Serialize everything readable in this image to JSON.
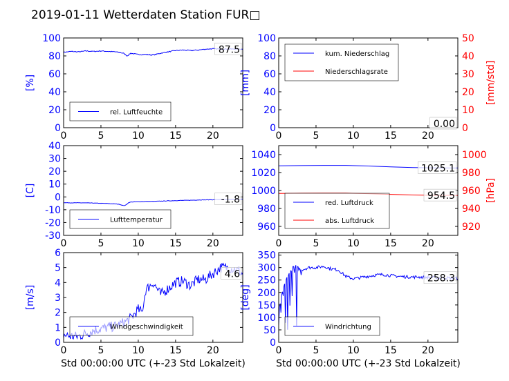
{
  "title": "2019-01-11 Wetterdaten Station FUR□",
  "colors": {
    "primary": "#0000ff",
    "secondary": "#ff0000",
    "axes": "#000000"
  },
  "chart_data": [
    {
      "id": "humidity",
      "type": "line",
      "xlim": [
        0,
        24
      ],
      "xticks": [
        0,
        5,
        10,
        15,
        20
      ],
      "ylim": [
        0,
        100
      ],
      "yticks": [
        0,
        20,
        40,
        60,
        80,
        100
      ],
      "ylabel": "[%]",
      "xlabel": "",
      "legend": "bottom-left",
      "grid": false,
      "annotation": "87.5",
      "series": [
        {
          "name": "rel. Luftfeuchte",
          "color": "#0000ff",
          "axis": "left",
          "noise": 0.5,
          "x": [
            0,
            1,
            2,
            3,
            4,
            5,
            6,
            7,
            8,
            8.5,
            9,
            10,
            11,
            12,
            13,
            14,
            15,
            16,
            17,
            18,
            19,
            20,
            21,
            22,
            23,
            24
          ],
          "y": [
            84,
            85,
            84.5,
            85.5,
            85,
            85.5,
            85,
            84.5,
            83,
            80,
            83,
            81.5,
            81.5,
            81,
            83,
            84.5,
            86,
            86.5,
            86,
            86.5,
            87.5,
            88,
            87.5,
            87.8,
            87.5,
            87.5
          ]
        }
      ]
    },
    {
      "id": "precipitation",
      "type": "line",
      "xlim": [
        0,
        24
      ],
      "xticks": [
        0,
        5,
        10,
        15,
        20
      ],
      "ylim": [
        0,
        100
      ],
      "yticks": [
        0,
        20,
        40,
        60,
        80,
        100
      ],
      "y2lim": [
        0,
        50
      ],
      "y2ticks": [
        0,
        10,
        20,
        30,
        40,
        50
      ],
      "ylabel": "[mm]",
      "y2label": "[mm/std]",
      "xlabel": "",
      "legend": "top-left",
      "grid": false,
      "annotation": "0.00",
      "series": [
        {
          "name": "kum. Niederschlag",
          "color": "#0000ff",
          "axis": "left",
          "noise": 0,
          "x": [
            0,
            24
          ],
          "y": [
            0,
            0
          ]
        },
        {
          "name": "Niederschlagsrate",
          "color": "#ff0000",
          "axis": "right",
          "noise": 0,
          "x": [
            0,
            24
          ],
          "y": [
            0,
            0
          ]
        }
      ]
    },
    {
      "id": "temperature",
      "type": "line",
      "xlim": [
        0,
        24
      ],
      "xticks": [
        0,
        5,
        10,
        15,
        20
      ],
      "ylim": [
        -30,
        40
      ],
      "yticks": [
        -30,
        -20,
        -10,
        0,
        10,
        20,
        30,
        40
      ],
      "ylabel": "[C]",
      "xlabel": "",
      "legend": "bottom-left",
      "grid": false,
      "annotation": "-1.8",
      "series": [
        {
          "name": "Lufttemperatur",
          "color": "#0000ff",
          "axis": "left",
          "noise": 0.15,
          "x": [
            0,
            1,
            2,
            3,
            4,
            5,
            6,
            7,
            7.5,
            8,
            8.3,
            8.7,
            9,
            10,
            11,
            12,
            13,
            14,
            15,
            16,
            17,
            18,
            19,
            20,
            21,
            22,
            23,
            24
          ],
          "y": [
            -4.5,
            -4.6,
            -4.6,
            -4.7,
            -4.8,
            -5,
            -5.2,
            -5.5,
            -5.8,
            -6.8,
            -6.5,
            -4.5,
            -4,
            -3.8,
            -3.6,
            -3.5,
            -3.3,
            -3.1,
            -2.9,
            -2.7,
            -2.6,
            -2.4,
            -2.3,
            -2.2,
            -2,
            -1.9,
            -1.8,
            -1.8
          ]
        }
      ]
    },
    {
      "id": "pressure",
      "type": "line",
      "xlim": [
        0,
        24
      ],
      "xticks": [
        0,
        5,
        10,
        15,
        20
      ],
      "ylim": [
        950,
        1050
      ],
      "yticks": [
        960,
        980,
        1000,
        1020,
        1040
      ],
      "y2lim": [
        910,
        1010
      ],
      "y2ticks": [
        920,
        940,
        960,
        980,
        1000
      ],
      "ylabel": "",
      "y2label": "[hPa]",
      "xlabel": "",
      "legend": "bottom-left",
      "grid": false,
      "annotations": [
        "1025.1",
        "954.5"
      ],
      "series": [
        {
          "name": "red. Luftdruck",
          "color": "#0000ff",
          "axis": "left",
          "noise": 0,
          "x": [
            0,
            3,
            6,
            9,
            12,
            15,
            18,
            21,
            24
          ],
          "y": [
            1027.5,
            1027.8,
            1028,
            1028,
            1027.3,
            1026.4,
            1025.6,
            1025.2,
            1025.1
          ]
        },
        {
          "name": "abs. Luftdruck",
          "color": "#ff0000",
          "axis": "right",
          "noise": 0,
          "x": [
            0,
            3,
            6,
            9,
            12,
            15,
            18,
            21,
            24
          ],
          "y": [
            956.8,
            957,
            957.1,
            957.1,
            956.5,
            955.7,
            955,
            954.6,
            954.5
          ]
        }
      ]
    },
    {
      "id": "wind-speed",
      "type": "line",
      "xlim": [
        0,
        24
      ],
      "xticks": [
        0,
        5,
        10,
        15,
        20
      ],
      "ylim": [
        0,
        6
      ],
      "yticks": [
        0,
        1,
        2,
        3,
        4,
        5,
        6
      ],
      "ylabel": "[m/s]",
      "xlabel": "Std 00:00:00 UTC (+-23 Std Lokalzeit)",
      "legend": "bottom-left",
      "grid": false,
      "annotation": "4.6",
      "series": [
        {
          "name": "Windgeschwindigkeit",
          "color": "#0000ff",
          "axis": "left",
          "noise": 0.35,
          "x": [
            0,
            1,
            2,
            3,
            4,
            5,
            6,
            7,
            8,
            9,
            10,
            10.5,
            11,
            12,
            13,
            14,
            15,
            16,
            17,
            18,
            19,
            20,
            21,
            22,
            23,
            24
          ],
          "y": [
            0.5,
            0.4,
            0.4,
            0.6,
            0.8,
            0.9,
            1.0,
            1.1,
            1.3,
            1.6,
            2.2,
            2.0,
            3.5,
            4.0,
            3.2,
            3.6,
            4.0,
            4.1,
            3.8,
            4.2,
            4.2,
            4.6,
            5.0,
            5.0,
            4.9,
            4.6
          ]
        }
      ]
    },
    {
      "id": "wind-direction",
      "type": "line",
      "xlim": [
        0,
        24
      ],
      "xticks": [
        0,
        5,
        10,
        15,
        20
      ],
      "ylim": [
        0,
        360
      ],
      "yticks": [
        0,
        50,
        100,
        150,
        200,
        250,
        300,
        350
      ],
      "ylabel": "[deg]",
      "xlabel": "Std 00:00:00 UTC (+-23 Std Lokalzeit)",
      "legend": "bottom-left",
      "grid": false,
      "annotation": "258.3",
      "series": [
        {
          "name": "Windrichtung",
          "color": "#0000ff",
          "axis": "left",
          "noise": 6,
          "x": [
            0,
            0.5,
            1,
            1.5,
            2,
            2.5,
            3,
            4,
            5,
            6,
            7,
            8,
            9,
            10,
            11,
            12,
            13,
            14,
            15,
            16,
            17,
            18,
            19,
            20,
            21,
            22,
            23,
            24
          ],
          "y": [
            120,
            200,
            250,
            280,
            310,
            300,
            290,
            300,
            300,
            305,
            295,
            290,
            265,
            255,
            260,
            265,
            270,
            272,
            268,
            265,
            263,
            262,
            262,
            260,
            260,
            259,
            258,
            258.3
          ]
        }
      ]
    }
  ]
}
